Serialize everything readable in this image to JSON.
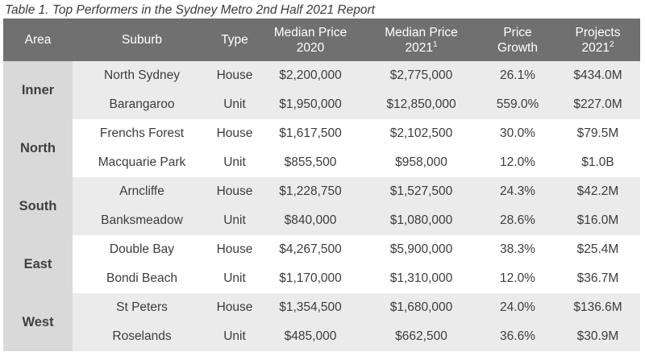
{
  "caption": "Table 1. Top Performers in the Sydney Metro 2nd Half 2021 Report",
  "headers": {
    "area": "Area",
    "suburb": "Suburb",
    "type": "Type",
    "median_2020_line1": "Median Price",
    "median_2020_line2": "2020",
    "median_2021_line1": "Median Price",
    "median_2021_line2": "2021",
    "median_2021_note": "1",
    "growth_line1": "Price",
    "growth_line2": "Growth",
    "projects_line1": "Projects",
    "projects_line2": "2021",
    "projects_note": "2"
  },
  "groups": [
    {
      "area": "Inner",
      "rows": [
        {
          "suburb": "North Sydney",
          "type": "House",
          "median_2020": "$2,200,000",
          "median_2021": "$2,775,000",
          "growth": "26.1%",
          "projects": "$434.0M"
        },
        {
          "suburb": "Barangaroo",
          "type": "Unit",
          "median_2020": "$1,950,000",
          "median_2021": "$12,850,000",
          "growth": "559.0%",
          "projects": "$227.0M"
        }
      ]
    },
    {
      "area": "North",
      "rows": [
        {
          "suburb": "Frenchs Forest",
          "type": "House",
          "median_2020": "$1,617,500",
          "median_2021": "$2,102,500",
          "growth": "30.0%",
          "projects": "$79.5M"
        },
        {
          "suburb": "Macquarie Park",
          "type": "Unit",
          "median_2020": "$855,500",
          "median_2021": "$958,000",
          "growth": "12.0%",
          "projects": "$1.0B"
        }
      ]
    },
    {
      "area": "South",
      "rows": [
        {
          "suburb": "Arncliffe",
          "type": "House",
          "median_2020": "$1,228,750",
          "median_2021": "$1,527,500",
          "growth": "24.3%",
          "projects": "$42.2M"
        },
        {
          "suburb": "Banksmeadow",
          "type": "Unit",
          "median_2020": "$840,000",
          "median_2021": "$1,080,000",
          "growth": "28.6%",
          "projects": "$16.0M"
        }
      ]
    },
    {
      "area": "East",
      "rows": [
        {
          "suburb": "Double Bay",
          "type": "House",
          "median_2020": "$4,267,500",
          "median_2021": "$5,900,000",
          "growth": "38.3%",
          "projects": "$25.4M"
        },
        {
          "suburb": "Bondi Beach",
          "type": "Unit",
          "median_2020": "$1,170,000",
          "median_2021": "$1,310,000",
          "growth": "12.0%",
          "projects": "$36.7M"
        }
      ]
    },
    {
      "area": "West",
      "rows": [
        {
          "suburb": "St Peters",
          "type": "House",
          "median_2020": "$1,354,500",
          "median_2021": "$1,680,000",
          "growth": "24.0%",
          "projects": "$136.6M"
        },
        {
          "suburb": "Roselands",
          "type": "Unit",
          "median_2020": "$485,000",
          "median_2021": "$662,500",
          "growth": "36.6%",
          "projects": "$30.9M"
        }
      ]
    }
  ]
}
